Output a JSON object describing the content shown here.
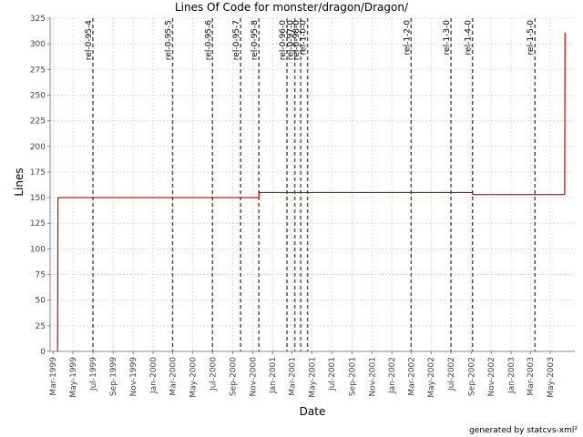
{
  "chart_data": {
    "type": "line",
    "title": "Lines Of Code for monster/dragon/Dragon/",
    "xlabel": "Date",
    "ylabel": "Lines",
    "ylim": [
      0,
      325
    ],
    "yticks": [
      0,
      25,
      50,
      75,
      100,
      125,
      150,
      175,
      200,
      225,
      250,
      275,
      300,
      325
    ],
    "xlim": [
      "1999-02-20",
      "2003-07-15"
    ],
    "xticks": [
      {
        "date": "1999-03-01",
        "label": "Mar-1999"
      },
      {
        "date": "1999-05-01",
        "label": "May-1999"
      },
      {
        "date": "1999-07-01",
        "label": "Jul-1999"
      },
      {
        "date": "1999-09-01",
        "label": "Sep-1999"
      },
      {
        "date": "1999-11-01",
        "label": "Nov-1999"
      },
      {
        "date": "2000-01-01",
        "label": "Jan-2000"
      },
      {
        "date": "2000-03-01",
        "label": "Mar-2000"
      },
      {
        "date": "2000-05-01",
        "label": "May-2000"
      },
      {
        "date": "2000-07-01",
        "label": "Jul-2000"
      },
      {
        "date": "2000-09-01",
        "label": "Sep-2000"
      },
      {
        "date": "2000-11-01",
        "label": "Nov-2000"
      },
      {
        "date": "2001-01-01",
        "label": "Jan-2001"
      },
      {
        "date": "2001-03-01",
        "label": "Mar-2001"
      },
      {
        "date": "2001-05-01",
        "label": "May-2001"
      },
      {
        "date": "2001-07-01",
        "label": "Jul-2001"
      },
      {
        "date": "2001-09-01",
        "label": "Sep-2001"
      },
      {
        "date": "2001-11-01",
        "label": "Nov-2001"
      },
      {
        "date": "2002-01-01",
        "label": "Jan-2002"
      },
      {
        "date": "2002-03-01",
        "label": "Mar-2002"
      },
      {
        "date": "2002-05-01",
        "label": "May-2002"
      },
      {
        "date": "2002-07-01",
        "label": "Jul-2002"
      },
      {
        "date": "2002-09-01",
        "label": "Sep-2002"
      },
      {
        "date": "2002-11-01",
        "label": "Nov-2002"
      },
      {
        "date": "2003-01-01",
        "label": "Jan-2003"
      },
      {
        "date": "2003-03-01",
        "label": "Mar-2003"
      },
      {
        "date": "2003-05-01",
        "label": "May-2003"
      }
    ],
    "series": [
      {
        "color": "#cc0000",
        "step": true,
        "points": [
          {
            "x": "1999-03-15",
            "y": 0
          },
          {
            "x": "1999-03-16",
            "y": 150
          },
          {
            "x": "2000-11-20",
            "y": 150
          },
          {
            "x": "2000-11-21",
            "y": 155
          },
          {
            "x": "2002-09-05",
            "y": 155
          },
          {
            "x": "2002-09-06",
            "y": 153
          },
          {
            "x": "2003-06-14",
            "y": 153
          },
          {
            "x": "2003-06-15",
            "y": 311
          }
        ]
      }
    ],
    "markers": [
      {
        "date": "1999-07-01",
        "label": "rel-0-95-4"
      },
      {
        "date": "2000-03-01",
        "label": "rel-0-95-5"
      },
      {
        "date": "2000-07-01",
        "label": "rel-0-95-6"
      },
      {
        "date": "2000-09-25",
        "label": "rel-0-95-7"
      },
      {
        "date": "2000-11-20",
        "label": "rel-0-95-8"
      },
      {
        "date": "2001-02-14",
        "label": "rel-0-96-0"
      },
      {
        "date": "2001-03-10",
        "label": "rel-0-97-0"
      },
      {
        "date": "2001-03-28",
        "label": "rel-0-98-0"
      },
      {
        "date": "2001-04-18",
        "label": "rel-1-0-0"
      },
      {
        "date": "2002-03-01",
        "label": "rel-1-2-0"
      },
      {
        "date": "2002-07-01",
        "label": "rel-1-3-0"
      },
      {
        "date": "2002-09-05",
        "label": "rel-1-4-0"
      },
      {
        "date": "2003-03-15",
        "label": "rel-1-5-0"
      }
    ],
    "grid": true,
    "colors": {
      "line": "#cc0000",
      "marker": "#555555",
      "grid": "#dddddd"
    }
  },
  "footer": "generated by statcvs-xml²"
}
